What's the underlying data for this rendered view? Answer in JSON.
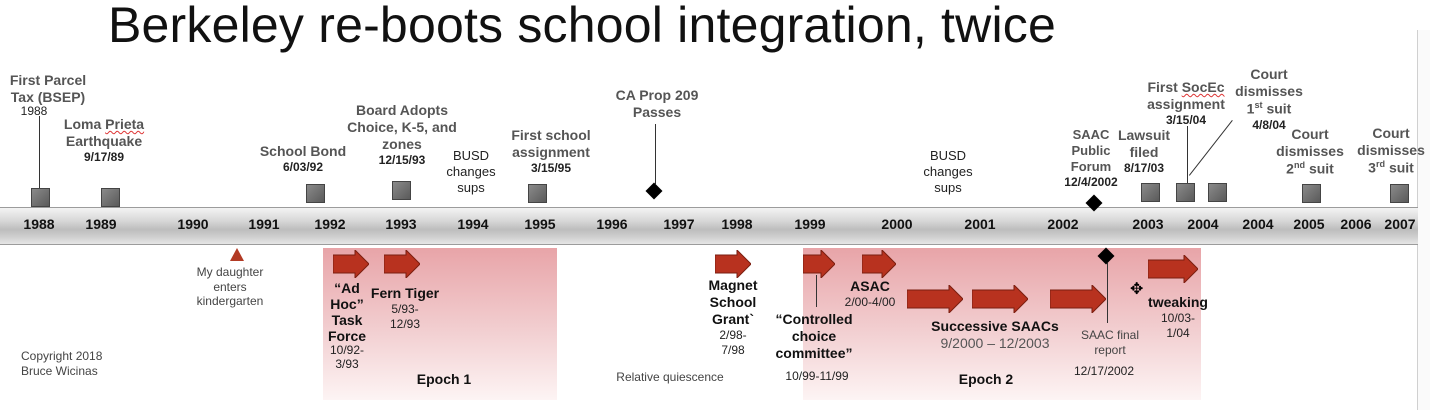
{
  "title": "Berkeley re-boots school integration, twice",
  "years": [
    "1988",
    "1989",
    "1990",
    "1991",
    "1992",
    "1993",
    "1994",
    "1995",
    "1996",
    "1997",
    "1998",
    "1999",
    "2000",
    "2001",
    "2002",
    "2003",
    "2004",
    "2004",
    "2005",
    "2006",
    "2007"
  ],
  "events": {
    "first_parcel": {
      "name_1": "First Parcel",
      "name_2": "Tax (BSEP)",
      "date": "1988"
    },
    "loma_prieta": {
      "name_1": "Loma",
      "name_1b": "Prieta",
      "name_2": "Earthquake",
      "date": "9/17/89"
    },
    "school_bond": {
      "name": "School Bond",
      "date": "6/03/92"
    },
    "board_adopts": {
      "name_1": "Board Adopts",
      "name_2": "Choice, K-5, and",
      "name_3": "zones",
      "date": "12/15/93"
    },
    "busd_sups_1": {
      "name_1": "BUSD",
      "name_2": "changes",
      "name_3": "sups"
    },
    "first_school": {
      "name_1": "First school",
      "name_2": "assignment",
      "date": "3/15/95"
    },
    "prop_209": {
      "name_1": "CA Prop 209",
      "name_2": "Passes"
    },
    "busd_sups_2": {
      "name_1": "BUSD",
      "name_2": "changes",
      "name_3": "sups"
    },
    "saac_forum": {
      "name_1": "SAAC",
      "name_2": "Public",
      "name_3": "Forum",
      "date": "12/4/2002"
    },
    "lawsuit": {
      "name_1": "Lawsuit",
      "name_2": "filed",
      "date": "8/17/03"
    },
    "first_socec": {
      "name_1": "First",
      "name_1b": "SocEc",
      "name_2": "assignment",
      "date": "3/15/04"
    },
    "court_1": {
      "name_1": "Court",
      "name_2": "dismisses",
      "ord_num": "1",
      "ord_sup": "st",
      "ord_word": "suit",
      "date": "4/8/04"
    },
    "court_2": {
      "name_1": "Court",
      "name_2": "dismisses",
      "ord_num": "2",
      "ord_sup": "nd",
      "ord_word": "suit"
    },
    "court_3": {
      "name_1": "Court",
      "name_2": "dismisses",
      "ord_num": "3",
      "ord_sup": "rd",
      "ord_word": "suit"
    }
  },
  "below": {
    "daughter": {
      "line_1": "My daughter",
      "line_2": "enters",
      "line_3": "kindergarten"
    },
    "adhoc": {
      "line_1": "“Ad",
      "line_2": "Hoc”",
      "line_3": "Task",
      "line_4": "Force",
      "date_1": "10/92-",
      "date_2": "3/93"
    },
    "fern_tiger": {
      "name": "Fern Tiger",
      "date_1": "5/93-",
      "date_2": "12/93"
    },
    "epoch_1": "Epoch 1",
    "quiescence": "Relative quiescence",
    "magnet": {
      "line_1": "Magnet",
      "line_2": "School",
      "line_3": "Grant`",
      "date_1": "2/98-",
      "date_2": "7/98"
    },
    "controlled": {
      "line_1": "“Controlled",
      "line_2": "choice",
      "line_3": "committee”",
      "date": "10/99-11/99"
    },
    "asac": {
      "name": "ASAC",
      "date": "2/00-4/00"
    },
    "successive": {
      "name": "Successive SAACs",
      "date": "9/2000 – 12/2003"
    },
    "epoch_2": "Epoch 2",
    "saac_final": {
      "line_1": "SAAC final",
      "line_2": "report",
      "date": "12/17/2002"
    },
    "tweaking": {
      "name": "tweaking",
      "date_1": "10/03-",
      "date_2": "1/04"
    },
    "copyright": {
      "line_1": "Copyright 2018",
      "line_2": "Bruce Wicinas"
    }
  },
  "colors": {
    "arrow": "#b8321f",
    "band": "#e8a4a8",
    "bar": "#cfcfcf"
  }
}
